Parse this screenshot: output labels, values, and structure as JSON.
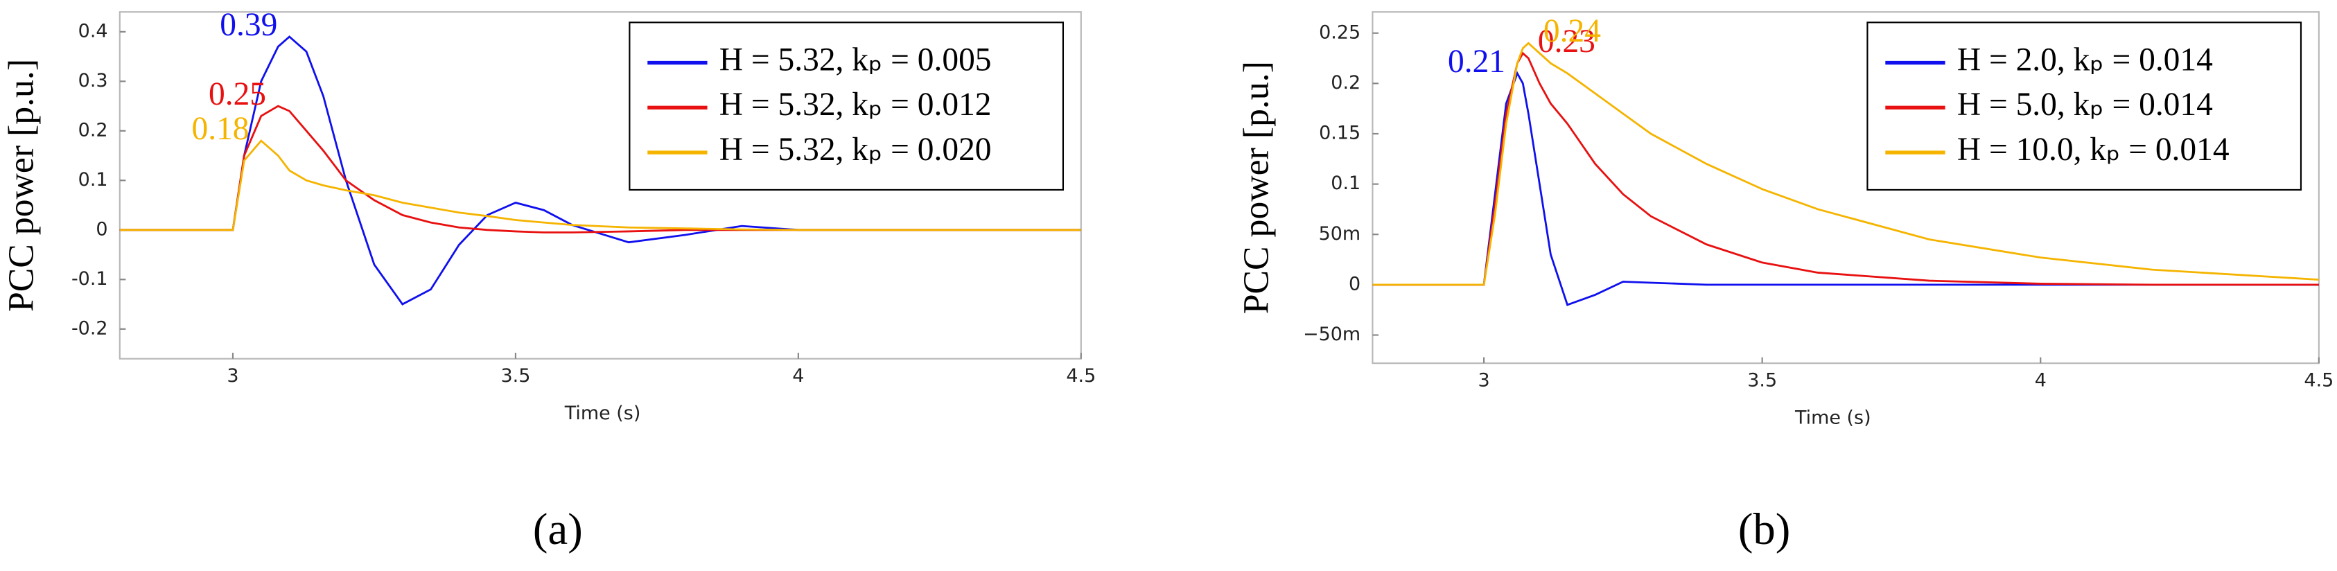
{
  "chart_data": [
    {
      "type": "line",
      "panel_label": "(a)",
      "x_label": "Time (s)",
      "y_label": "PCC power [p.u.]",
      "x": [
        2.8,
        3.0,
        3.02,
        3.05,
        3.08,
        3.1,
        3.13,
        3.16,
        3.2,
        3.25,
        3.3,
        3.35,
        3.4,
        3.45,
        3.5,
        3.55,
        3.6,
        3.7,
        3.8,
        3.9,
        4.0,
        4.5
      ],
      "series": [
        {
          "name": "H = 5.32, kₚ = 0.005",
          "color": "#1010ee",
          "values": [
            0,
            0,
            0.15,
            0.3,
            0.37,
            0.39,
            0.36,
            0.27,
            0.1,
            -0.07,
            -0.15,
            -0.12,
            -0.03,
            0.03,
            0.055,
            0.04,
            0.01,
            -0.025,
            -0.01,
            0.008,
            0,
            0
          ]
        },
        {
          "name": "H = 5.32, kₚ = 0.012",
          "color": "#e81010",
          "values": [
            0,
            0,
            0.15,
            0.23,
            0.25,
            0.24,
            0.2,
            0.16,
            0.1,
            0.06,
            0.03,
            0.015,
            0.005,
            0,
            -0.003,
            -0.005,
            -0.005,
            -0.003,
            0,
            0,
            0,
            0
          ]
        },
        {
          "name": "H = 5.32, kₚ = 0.020",
          "color": "#f5b400",
          "values": [
            0,
            0,
            0.14,
            0.18,
            0.15,
            0.12,
            0.1,
            0.09,
            0.08,
            0.07,
            0.055,
            0.045,
            0.035,
            0.028,
            0.02,
            0.015,
            0.01,
            0.005,
            0.003,
            0.001,
            0,
            0
          ]
        }
      ],
      "annotations": [
        {
          "text": "0.39",
          "series": 0
        },
        {
          "text": "0.25",
          "series": 1
        },
        {
          "text": "0.18",
          "series": 2
        }
      ],
      "xlim": [
        2.8,
        4.5
      ],
      "xticks": [
        3,
        3.5,
        4,
        4.5
      ],
      "ylim": [
        -0.26,
        0.44
      ],
      "yticks": [
        0.4,
        0.3,
        0.2,
        0.1,
        0,
        -0.1,
        -0.2
      ],
      "legend": "upper right",
      "grid": false
    },
    {
      "type": "line",
      "panel_label": "(b)",
      "x_label": "Time (s)",
      "y_label": "PCC power [p.u.]",
      "x": [
        2.8,
        3.0,
        3.02,
        3.04,
        3.06,
        3.07,
        3.08,
        3.1,
        3.12,
        3.15,
        3.2,
        3.25,
        3.3,
        3.4,
        3.5,
        3.6,
        3.8,
        4.0,
        4.2,
        4.5
      ],
      "series": [
        {
          "name": "H = 2.0, kₚ = 0.014",
          "color": "#1010ee",
          "values": [
            0,
            0,
            0.09,
            0.18,
            0.21,
            0.2,
            0.17,
            0.1,
            0.03,
            -0.02,
            -0.01,
            0.003,
            0.002,
            0,
            0,
            0,
            0,
            0,
            0,
            0
          ]
        },
        {
          "name": "H = 5.0, kₚ = 0.014",
          "color": "#e81010",
          "values": [
            0,
            0,
            0.08,
            0.17,
            0.22,
            0.23,
            0.225,
            0.2,
            0.18,
            0.16,
            0.12,
            0.09,
            0.068,
            0.04,
            0.022,
            0.012,
            0.004,
            0.001,
            0,
            0
          ]
        },
        {
          "name": "H = 10.0, kₚ = 0.014",
          "color": "#f5b400",
          "values": [
            0,
            0,
            0.07,
            0.16,
            0.22,
            0.235,
            0.24,
            0.23,
            0.22,
            0.21,
            0.19,
            0.17,
            0.15,
            0.12,
            0.095,
            0.075,
            0.045,
            0.027,
            0.015,
            0.005
          ]
        }
      ],
      "annotations": [
        {
          "text": "0.21",
          "series": 0
        },
        {
          "text": "0.23",
          "series": 1
        },
        {
          "text": "0.24",
          "series": 2
        }
      ],
      "xlim": [
        2.8,
        4.5
      ],
      "xticks": [
        3,
        3.5,
        4,
        4.5
      ],
      "ylim": [
        -0.078,
        0.271
      ],
      "yticks": [
        0.25,
        0.2,
        0.15,
        0.1,
        {
          "value": 0.05,
          "label": "50m"
        },
        0,
        {
          "value": -0.05,
          "label": "−50m"
        }
      ],
      "legend": "upper right",
      "grid": false
    }
  ]
}
